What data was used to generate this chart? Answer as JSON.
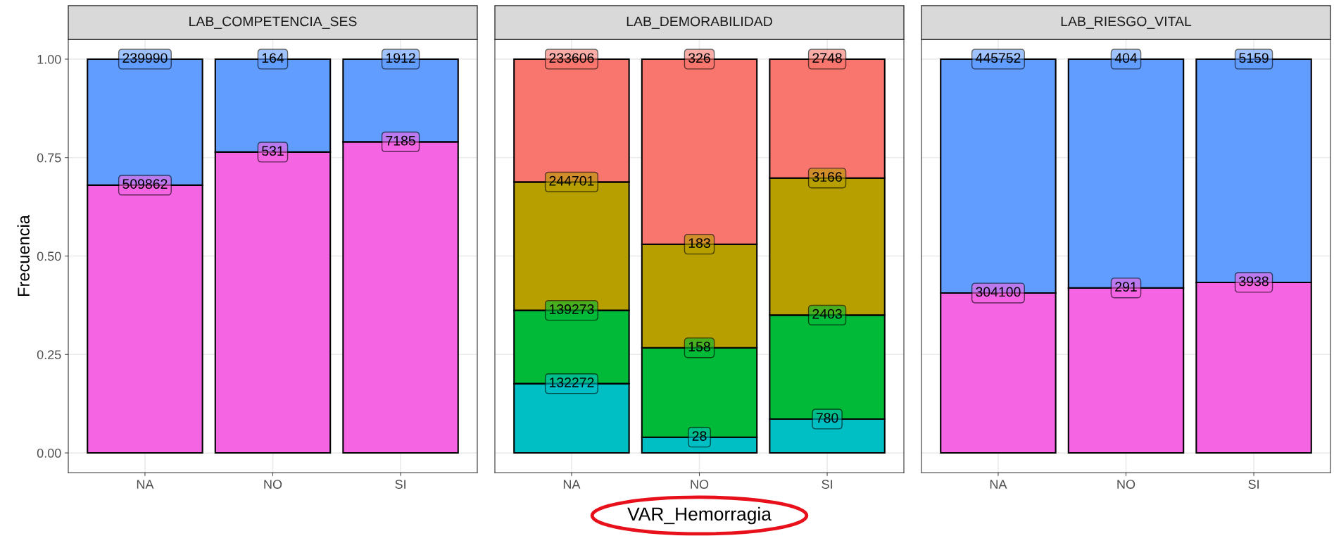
{
  "chart_data": [
    {
      "type": "bar",
      "stacked": true,
      "title": "LAB_COMPETENCIA_SES",
      "ylabel": "Frecuencia",
      "categories": [
        "NA",
        "NO",
        "SI"
      ],
      "grid": true,
      "ylim": [
        -0.05,
        1.05
      ],
      "yticks": [
        {
          "value": 0,
          "label": "0.00"
        },
        {
          "value": 0.25,
          "label": "0.25"
        },
        {
          "value": 0.5,
          "label": "0.50"
        },
        {
          "value": 0.75,
          "label": "0.75"
        },
        {
          "value": 1,
          "label": "1.00"
        }
      ],
      "series": [
        {
          "color": "#f564e3",
          "values": [
            0.68,
            0.764,
            0.79
          ]
        },
        {
          "color": "#619cff",
          "values": [
            0.32,
            0.236,
            0.21
          ]
        }
      ],
      "annotations": [
        {
          "text": "509862",
          "x": "NA",
          "y": 0.68
        },
        {
          "text": "531",
          "x": "NO",
          "y": 0.764
        },
        {
          "text": "7185",
          "x": "SI",
          "y": 0.79
        },
        {
          "text": "239990",
          "x": "NA",
          "y": 1.0
        },
        {
          "text": "164",
          "x": "NO",
          "y": 1.0
        },
        {
          "text": "1912",
          "x": "SI",
          "y": 1.0
        }
      ]
    },
    {
      "type": "bar",
      "stacked": true,
      "title": "LAB_DEMORABILIDAD",
      "xlabel": "VAR_Hemorragia",
      "categories": [
        "NA",
        "NO",
        "SI"
      ],
      "grid": true,
      "tick_labels": "x",
      "ylim": [
        -0.05,
        1.05
      ],
      "yticks": [
        0,
        0.25,
        0.5,
        0.75,
        1
      ],
      "series": [
        {
          "color": "#00bfc4",
          "values": [
            0.176,
            0.04,
            0.086
          ]
        },
        {
          "color": "#00ba38",
          "values": [
            0.186,
            0.227,
            0.264
          ]
        },
        {
          "color": "#b79f00",
          "values": [
            0.326,
            0.263,
            0.348
          ]
        },
        {
          "color": "#f8766d",
          "values": [
            0.312,
            0.47,
            0.302
          ]
        }
      ],
      "annotations": [
        {
          "text": "132272",
          "x": "NA",
          "y": 0.176
        },
        {
          "text": "28",
          "x": "NO",
          "y": 0.04
        },
        {
          "text": "780",
          "x": "SI",
          "y": 0.086
        },
        {
          "text": "139273",
          "x": "NA",
          "y": 0.362
        },
        {
          "text": "158",
          "x": "NO",
          "y": 0.267
        },
        {
          "text": "2403",
          "x": "SI",
          "y": 0.35
        },
        {
          "text": "244701",
          "x": "NA",
          "y": 0.688
        },
        {
          "text": "183",
          "x": "NO",
          "y": 0.53
        },
        {
          "text": "3166",
          "x": "SI",
          "y": 0.698
        },
        {
          "text": "233606",
          "x": "NA",
          "y": 1.0
        },
        {
          "text": "326",
          "x": "NO",
          "y": 1.0
        },
        {
          "text": "2748",
          "x": "SI",
          "y": 1.0
        }
      ]
    },
    {
      "type": "bar",
      "stacked": true,
      "title": "LAB_RIESGO_VITAL",
      "categories": [
        "NA",
        "NO",
        "SI"
      ],
      "grid": true,
      "tick_labels": "x",
      "ylim": [
        -0.05,
        1.05
      ],
      "yticks": [
        0,
        0.25,
        0.5,
        0.75,
        1
      ],
      "series": [
        {
          "color": "#f564e3",
          "values": [
            0.406,
            0.419,
            0.433
          ]
        },
        {
          "color": "#619cff",
          "values": [
            0.594,
            0.581,
            0.567
          ]
        }
      ],
      "annotations": [
        {
          "text": "304100",
          "x": "NA",
          "y": 0.406
        },
        {
          "text": "291",
          "x": "NO",
          "y": 0.419
        },
        {
          "text": "3938",
          "x": "SI",
          "y": 0.433
        },
        {
          "text": "445752",
          "x": "NA",
          "y": 1.0
        },
        {
          "text": "404",
          "x": "NO",
          "y": 1.0
        },
        {
          "text": "5159",
          "x": "SI",
          "y": 1.0
        }
      ]
    }
  ]
}
